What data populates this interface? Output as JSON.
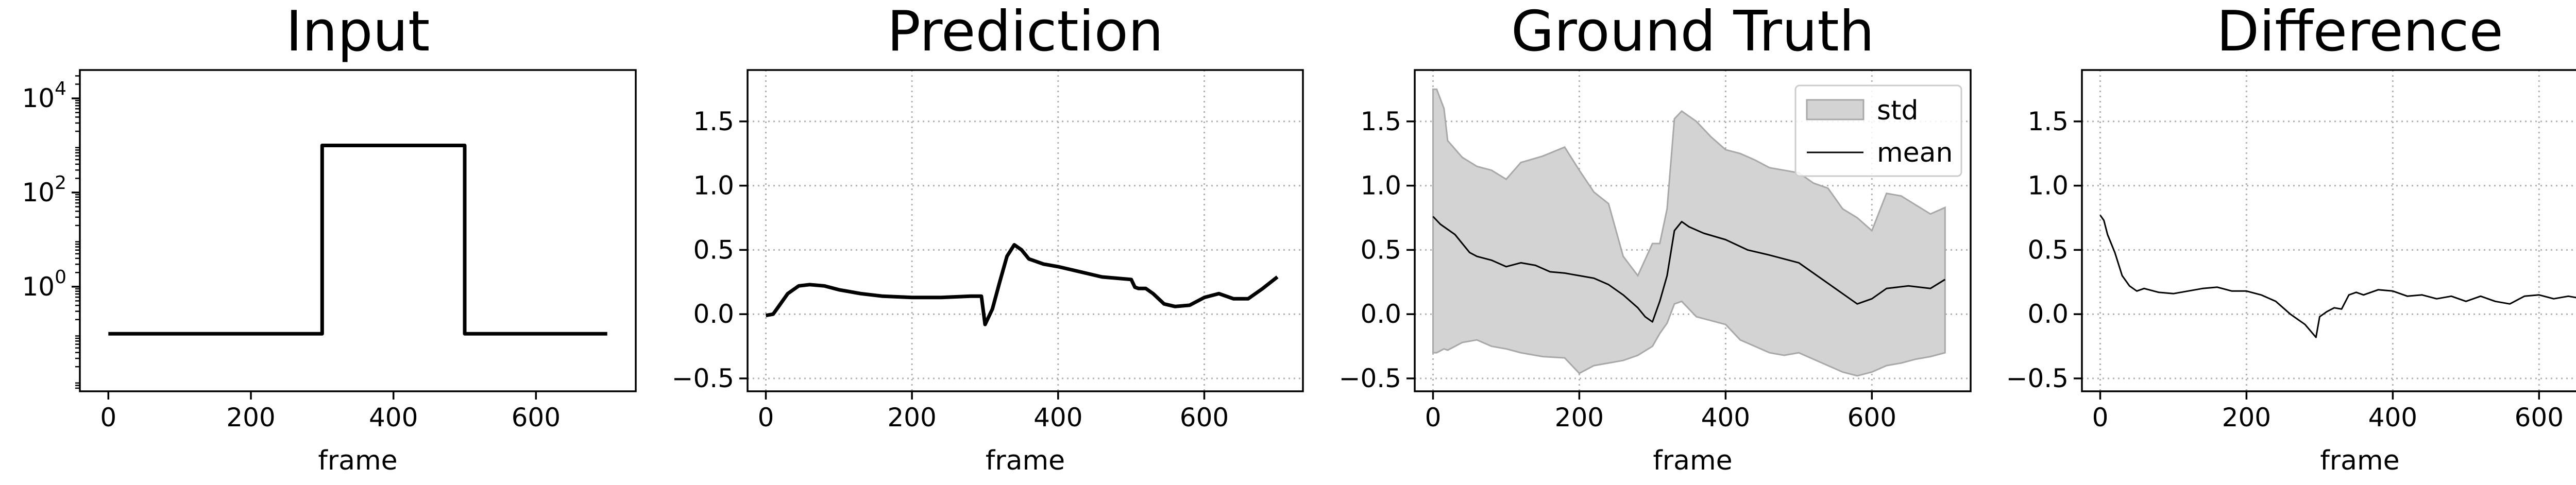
{
  "chart_data": [
    {
      "type": "line",
      "title": "Input",
      "xlabel": "frame",
      "ylabel": "",
      "yscale": "log",
      "xlim": [
        -40,
        740
      ],
      "ylim": [
        0.006,
        40000
      ],
      "xticks": [
        0,
        200,
        400,
        600
      ],
      "xtick_labels": [
        "0",
        "200",
        "400",
        "600"
      ],
      "yticks": [
        1,
        100,
        10000
      ],
      "ytick_labels": [
        {
          "base": "10",
          "exp": "0"
        },
        {
          "base": "10",
          "exp": "2"
        },
        {
          "base": "10",
          "exp": "4"
        }
      ],
      "grid": false,
      "series": [
        {
          "color": "#000000",
          "x": [
            0,
            300,
            300,
            500,
            500,
            700
          ],
          "y": [
            0.1,
            0.1,
            1000,
            1000,
            0.1,
            0.1
          ]
        }
      ]
    },
    {
      "type": "line",
      "title": "Prediction",
      "xlabel": "frame",
      "ylabel": "",
      "xlim": [
        -25,
        735
      ],
      "ylim": [
        -0.6,
        1.9
      ],
      "xticks": [
        0,
        200,
        400,
        600
      ],
      "xtick_labels": [
        "0",
        "200",
        "400",
        "600"
      ],
      "yticks": [
        -0.5,
        0.0,
        0.5,
        1.0,
        1.5
      ],
      "ytick_labels": [
        "−0.5",
        "0.0",
        "0.5",
        "1.0",
        "1.5"
      ],
      "grid": true,
      "series": [
        {
          "color": "#000000",
          "x": [
            0,
            10,
            20,
            30,
            45,
            60,
            80,
            100,
            130,
            160,
            200,
            240,
            280,
            295,
            300,
            305,
            310,
            320,
            330,
            340,
            350,
            360,
            380,
            400,
            430,
            460,
            500,
            505,
            510,
            520,
            530,
            545,
            560,
            580,
            600,
            620,
            640,
            660,
            680,
            700
          ],
          "y": [
            -0.01,
            0.0,
            0.08,
            0.16,
            0.22,
            0.23,
            0.22,
            0.19,
            0.16,
            0.14,
            0.13,
            0.13,
            0.14,
            0.14,
            -0.08,
            -0.02,
            0.04,
            0.25,
            0.45,
            0.54,
            0.5,
            0.43,
            0.39,
            0.37,
            0.33,
            0.29,
            0.27,
            0.21,
            0.2,
            0.2,
            0.16,
            0.08,
            0.06,
            0.07,
            0.13,
            0.16,
            0.12,
            0.12,
            0.2,
            0.29
          ]
        }
      ]
    },
    {
      "type": "line",
      "title": "Ground Truth",
      "xlabel": "frame",
      "ylabel": "",
      "xlim": [
        -25,
        735
      ],
      "ylim": [
        -0.6,
        1.9
      ],
      "xticks": [
        0,
        200,
        400,
        600
      ],
      "xtick_labels": [
        "0",
        "200",
        "400",
        "600"
      ],
      "yticks": [
        -0.5,
        0.0,
        0.5,
        1.0,
        1.5
      ],
      "ytick_labels": [
        "−0.5",
        "0.0",
        "0.5",
        "1.0",
        "1.5"
      ],
      "grid": true,
      "legend": {
        "location": "upper right",
        "entries": [
          {
            "label": "std",
            "kind": "patch"
          },
          {
            "label": "mean",
            "kind": "line"
          }
        ]
      },
      "band": {
        "color": "#d3d3d3",
        "edge_color": "#a8a8a8",
        "x": [
          0,
          5,
          15,
          20,
          40,
          60,
          80,
          100,
          120,
          150,
          180,
          200,
          220,
          240,
          260,
          280,
          300,
          310,
          320,
          330,
          340,
          360,
          380,
          400,
          420,
          440,
          460,
          480,
          500,
          520,
          540,
          560,
          580,
          600,
          620,
          640,
          660,
          680,
          700
        ],
        "lower": [
          -0.3,
          -0.3,
          -0.27,
          -0.28,
          -0.22,
          -0.2,
          -0.25,
          -0.27,
          -0.3,
          -0.33,
          -0.34,
          -0.46,
          -0.4,
          -0.38,
          -0.36,
          -0.32,
          -0.25,
          -0.15,
          -0.07,
          0.08,
          0.1,
          -0.02,
          -0.05,
          -0.08,
          -0.2,
          -0.25,
          -0.3,
          -0.32,
          -0.3,
          -0.35,
          -0.4,
          -0.45,
          -0.48,
          -0.45,
          -0.4,
          -0.38,
          -0.35,
          -0.33,
          -0.3
        ],
        "upper": [
          1.75,
          1.75,
          1.6,
          1.35,
          1.22,
          1.15,
          1.12,
          1.05,
          1.18,
          1.23,
          1.3,
          1.12,
          0.95,
          0.86,
          0.45,
          0.3,
          0.55,
          0.55,
          0.82,
          1.52,
          1.58,
          1.5,
          1.38,
          1.28,
          1.25,
          1.2,
          1.14,
          1.12,
          1.1,
          1.02,
          0.98,
          0.82,
          0.75,
          0.65,
          0.94,
          0.92,
          0.85,
          0.78,
          0.83
        ]
      },
      "series": [
        {
          "name": "mean",
          "color": "#000000",
          "x": [
            0,
            10,
            20,
            30,
            40,
            50,
            60,
            80,
            100,
            120,
            140,
            160,
            180,
            200,
            220,
            240,
            260,
            280,
            290,
            300,
            310,
            320,
            330,
            340,
            350,
            370,
            400,
            430,
            460,
            500,
            530,
            560,
            580,
            600,
            620,
            650,
            680,
            700
          ],
          "y": [
            0.76,
            0.7,
            0.66,
            0.62,
            0.55,
            0.48,
            0.45,
            0.42,
            0.37,
            0.4,
            0.38,
            0.33,
            0.32,
            0.3,
            0.28,
            0.23,
            0.15,
            0.05,
            -0.02,
            -0.06,
            0.1,
            0.3,
            0.65,
            0.72,
            0.68,
            0.63,
            0.58,
            0.5,
            0.46,
            0.4,
            0.28,
            0.16,
            0.08,
            0.12,
            0.2,
            0.22,
            0.2,
            0.27
          ]
        }
      ]
    },
    {
      "type": "line",
      "title": "Difference",
      "xlabel": "frame",
      "ylabel": "",
      "xlim": [
        -25,
        735
      ],
      "ylim": [
        -0.6,
        1.9
      ],
      "xticks": [
        0,
        200,
        400,
        600
      ],
      "xtick_labels": [
        "0",
        "200",
        "400",
        "600"
      ],
      "yticks": [
        -0.5,
        0.0,
        0.5,
        1.0,
        1.5
      ],
      "ytick_labels": [
        "−0.5",
        "0.0",
        "0.5",
        "1.0",
        "1.5"
      ],
      "grid": true,
      "series": [
        {
          "color": "#000000",
          "x": [
            0,
            5,
            10,
            15,
            20,
            30,
            40,
            50,
            60,
            80,
            100,
            120,
            140,
            160,
            180,
            200,
            220,
            240,
            260,
            280,
            295,
            300,
            310,
            320,
            330,
            340,
            350,
            360,
            380,
            400,
            420,
            440,
            460,
            480,
            500,
            520,
            540,
            560,
            580,
            600,
            620,
            640,
            660,
            680,
            690,
            700
          ],
          "y": [
            0.77,
            0.73,
            0.62,
            0.55,
            0.48,
            0.3,
            0.22,
            0.18,
            0.2,
            0.17,
            0.16,
            0.18,
            0.2,
            0.21,
            0.18,
            0.18,
            0.15,
            0.1,
            0.0,
            -0.08,
            -0.18,
            -0.02,
            0.02,
            0.05,
            0.04,
            0.15,
            0.17,
            0.15,
            0.19,
            0.18,
            0.14,
            0.15,
            0.12,
            0.14,
            0.1,
            0.14,
            0.1,
            0.08,
            0.14,
            0.15,
            0.12,
            0.14,
            0.12,
            0.08,
            0.02,
            -0.02
          ]
        }
      ]
    }
  ]
}
